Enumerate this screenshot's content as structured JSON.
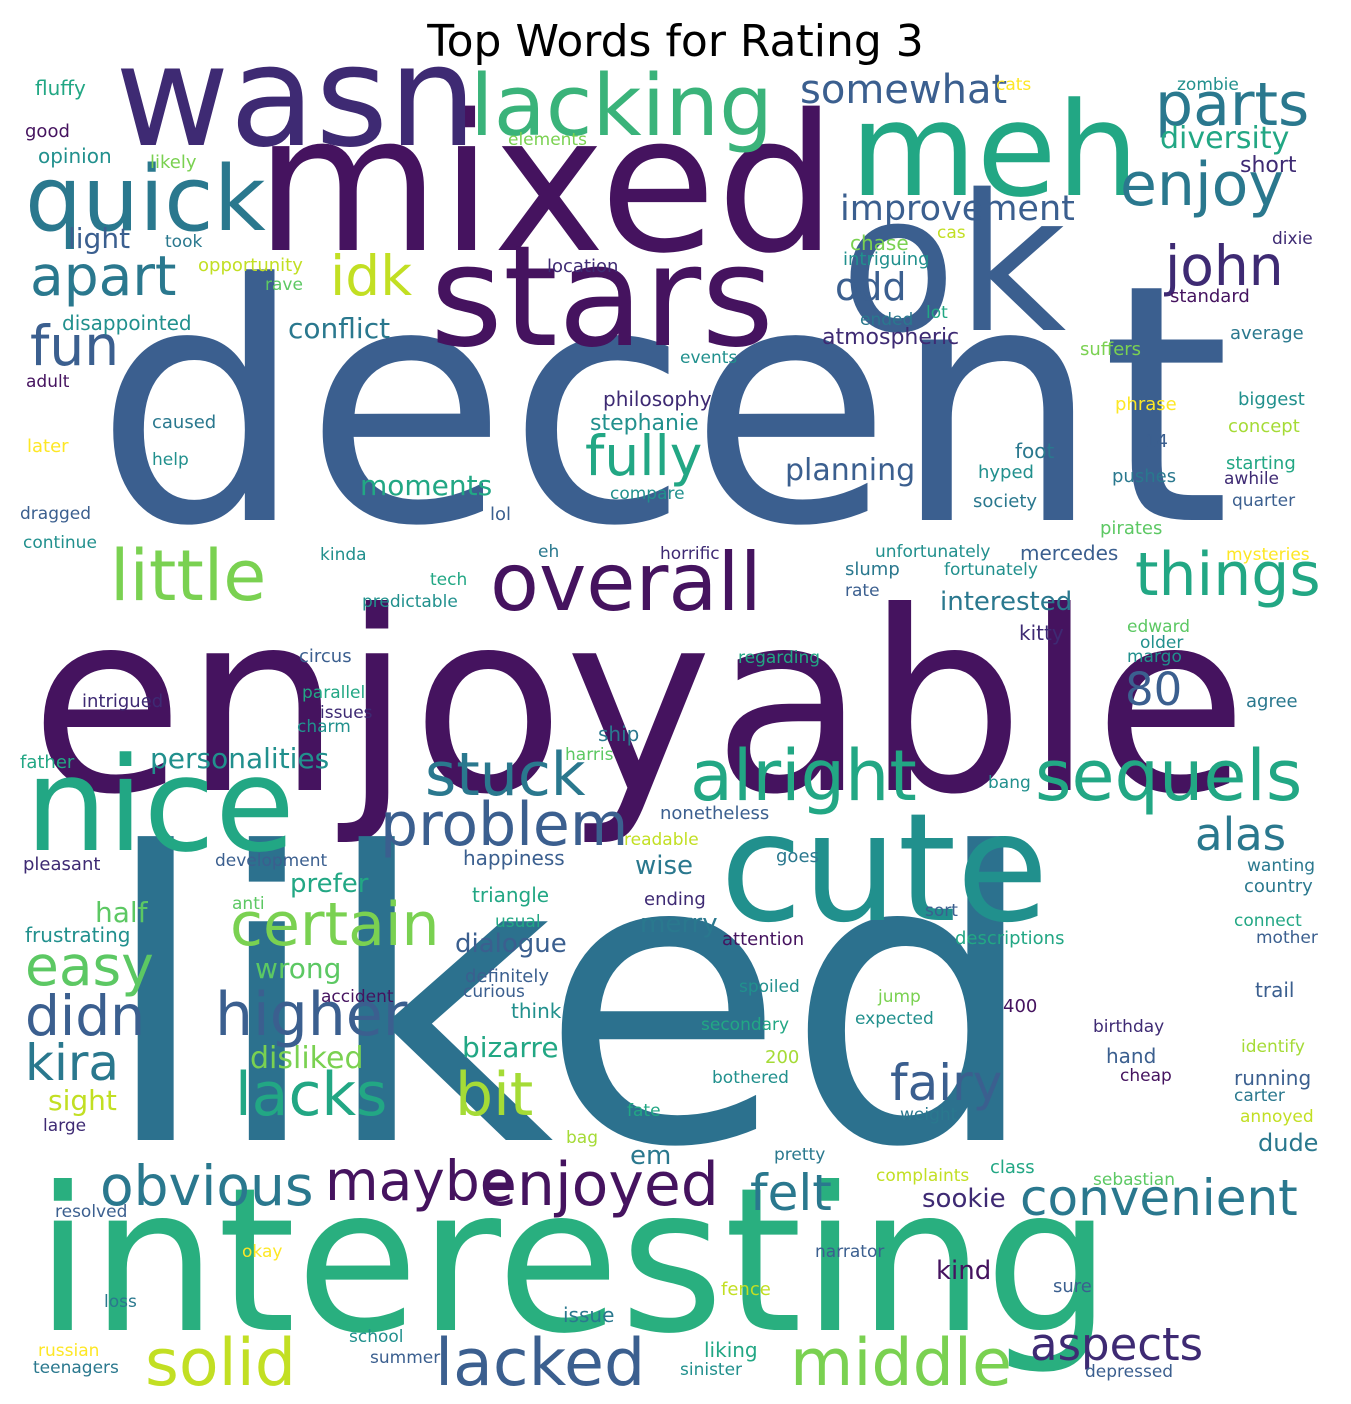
{
  "title": "Top Words for Rating 3",
  "palette": {
    "dark_purple": "#440154",
    "purple": "#472c7a",
    "indigo": "#3b518b",
    "blue": "#2c718e",
    "teal": "#21908d",
    "green_teal": "#27ad81",
    "green": "#5cc863",
    "lime": "#aadc32",
    "yellow": "#fde725"
  },
  "words": [
    {
      "text": "decent",
      "color": "#3b5f8f"
    },
    {
      "text": "enjoyable",
      "color": "#45135f"
    },
    {
      "text": "liked",
      "color": "#2c718e"
    },
    {
      "text": "interesting",
      "color": "#29af7f"
    },
    {
      "text": "mixed",
      "color": "#45135f"
    },
    {
      "text": "wasn",
      "color": "#3e2a73"
    },
    {
      "text": "meh",
      "color": "#22a784"
    },
    {
      "text": "ok",
      "color": "#3b5f8f"
    },
    {
      "text": "stars",
      "color": "#45135f"
    },
    {
      "text": "nice",
      "color": "#22a784"
    },
    {
      "text": "cute",
      "color": "#21908d"
    },
    {
      "text": "quick",
      "color": "#2a788e"
    },
    {
      "text": "lacking",
      "color": "#3ab37a"
    },
    {
      "text": "parts",
      "color": "#2a788e"
    },
    {
      "text": "enjoy",
      "color": "#2a788e"
    },
    {
      "text": "apart",
      "color": "#2a788e"
    },
    {
      "text": "idk",
      "color": "#c2df23"
    },
    {
      "text": "john",
      "color": "#3e2a73"
    },
    {
      "text": "fun",
      "color": "#3b5f8f"
    },
    {
      "text": "little",
      "color": "#7ad151"
    },
    {
      "text": "overall",
      "color": "#45135f"
    },
    {
      "text": "things",
      "color": "#22a784"
    },
    {
      "text": "fully",
      "color": "#22a784"
    },
    {
      "text": "alright",
      "color": "#22a784"
    },
    {
      "text": "sequels",
      "color": "#22a784"
    },
    {
      "text": "stuck",
      "color": "#2a788e"
    },
    {
      "text": "problem",
      "color": "#3b5f8f"
    },
    {
      "text": "80",
      "color": "#3b5f8f"
    },
    {
      "text": "alas",
      "color": "#2a788e"
    },
    {
      "text": "certain",
      "color": "#7ad151"
    },
    {
      "text": "easy",
      "color": "#5cc863"
    },
    {
      "text": "higher",
      "color": "#3b5f8f"
    },
    {
      "text": "didn",
      "color": "#3b5f8f"
    },
    {
      "text": "kira",
      "color": "#2a788e"
    },
    {
      "text": "lacks",
      "color": "#22a784"
    },
    {
      "text": "bit",
      "color": "#a5db36"
    },
    {
      "text": "fairy",
      "color": "#3b5f8f"
    },
    {
      "text": "obvious",
      "color": "#2a788e"
    },
    {
      "text": "maybe",
      "color": "#45135f"
    },
    {
      "text": "enjoyed",
      "color": "#45135f"
    },
    {
      "text": "felt",
      "color": "#2a788e"
    },
    {
      "text": "convenient",
      "color": "#2a788e"
    },
    {
      "text": "solid",
      "color": "#c2df23"
    },
    {
      "text": "lacked",
      "color": "#3b5f8f"
    },
    {
      "text": "middle",
      "color": "#7ad151"
    },
    {
      "text": "aspects",
      "color": "#3e2a73"
    },
    {
      "text": "somewhat",
      "color": "#3b5f8f"
    },
    {
      "text": "improvement",
      "color": "#3b5f8f"
    },
    {
      "text": "odd",
      "color": "#3b5f8f"
    },
    {
      "text": "diversity",
      "color": "#22a784"
    },
    {
      "text": "short",
      "color": "#3e2a73"
    },
    {
      "text": "light",
      "color": "#3b5f8f"
    },
    {
      "text": "conflict",
      "color": "#2a788e"
    },
    {
      "text": "stephanie",
      "color": "#21908d"
    },
    {
      "text": "planning",
      "color": "#3b5f8f"
    },
    {
      "text": "moments",
      "color": "#22a784"
    },
    {
      "text": "personalities",
      "color": "#21908d"
    },
    {
      "text": "interested",
      "color": "#2a788e"
    },
    {
      "text": "prefer",
      "color": "#22a784"
    },
    {
      "text": "half",
      "color": "#5cc863"
    },
    {
      "text": "wrong",
      "color": "#5cc863"
    },
    {
      "text": "dialogue",
      "color": "#3b5f8f"
    },
    {
      "text": "merry",
      "color": "#2a788e"
    },
    {
      "text": "wise",
      "color": "#2a788e"
    },
    {
      "text": "bizarre",
      "color": "#22a784"
    },
    {
      "text": "disliked",
      "color": "#7ad151"
    },
    {
      "text": "sight",
      "color": "#c2df23"
    },
    {
      "text": "em",
      "color": "#2a788e"
    },
    {
      "text": "dude",
      "color": "#2a788e"
    },
    {
      "text": "sookie",
      "color": "#3e2a73"
    },
    {
      "text": "kind",
      "color": "#45135f"
    },
    {
      "text": "fluffy",
      "color": "#22a784"
    },
    {
      "text": "good",
      "color": "#45135f"
    },
    {
      "text": "opinion",
      "color": "#21908d"
    },
    {
      "text": "likely",
      "color": "#7ad151"
    },
    {
      "text": "took",
      "color": "#2a788e"
    },
    {
      "text": "opportunity",
      "color": "#c2df23"
    },
    {
      "text": "rave",
      "color": "#5cc863"
    },
    {
      "text": "location",
      "color": "#3e2a73"
    },
    {
      "text": "elements",
      "color": "#7ad151"
    },
    {
      "text": "cats",
      "color": "#fde725"
    },
    {
      "text": "zombie",
      "color": "#21908d"
    },
    {
      "text": "chase",
      "color": "#7ad151"
    },
    {
      "text": "cas",
      "color": "#c2df23"
    },
    {
      "text": "intriguing",
      "color": "#21908d"
    },
    {
      "text": "dixie",
      "color": "#3e2a73"
    },
    {
      "text": "standard",
      "color": "#45135f"
    },
    {
      "text": "lot",
      "color": "#22a784"
    },
    {
      "text": "ended",
      "color": "#2a788e"
    },
    {
      "text": "atmospheric",
      "color": "#3e2a73"
    },
    {
      "text": "average",
      "color": "#2a788e"
    },
    {
      "text": "suffers",
      "color": "#7ad151"
    },
    {
      "text": "events",
      "color": "#21908d"
    },
    {
      "text": "disappointed",
      "color": "#21908d"
    },
    {
      "text": "adult",
      "color": "#45135f"
    },
    {
      "text": "philosophy",
      "color": "#3e2a73"
    },
    {
      "text": "phrase",
      "color": "#fde725"
    },
    {
      "text": "biggest",
      "color": "#21908d"
    },
    {
      "text": "caused",
      "color": "#2a788e"
    },
    {
      "text": "later",
      "color": "#fde725"
    },
    {
      "text": "help",
      "color": "#21908d"
    },
    {
      "text": "foot",
      "color": "#2a788e"
    },
    {
      "text": "14",
      "color": "#3b5f8f"
    },
    {
      "text": "concept",
      "color": "#a5db36"
    },
    {
      "text": "hyped",
      "color": "#21908d"
    },
    {
      "text": "pushes",
      "color": "#2a788e"
    },
    {
      "text": "starting",
      "color": "#22a784"
    },
    {
      "text": "awhile",
      "color": "#3e2a73"
    },
    {
      "text": "compare",
      "color": "#21908d"
    },
    {
      "text": "society",
      "color": "#2a788e"
    },
    {
      "text": "quarter",
      "color": "#3b5f8f"
    },
    {
      "text": "dragged",
      "color": "#3b5f8f"
    },
    {
      "text": "lol",
      "color": "#3b5f8f"
    },
    {
      "text": "pirates",
      "color": "#5cc863"
    },
    {
      "text": "continue",
      "color": "#21908d"
    },
    {
      "text": "kinda",
      "color": "#21908d"
    },
    {
      "text": "eh",
      "color": "#2a788e"
    },
    {
      "text": "horrific",
      "color": "#3e2a73"
    },
    {
      "text": "unfortunately",
      "color": "#21908d"
    },
    {
      "text": "mercedes",
      "color": "#3b5f8f"
    },
    {
      "text": "mysteries",
      "color": "#fde725"
    },
    {
      "text": "tech",
      "color": "#22a784"
    },
    {
      "text": "slump",
      "color": "#2a788e"
    },
    {
      "text": "fortunately",
      "color": "#21908d"
    },
    {
      "text": "predictable",
      "color": "#21908d"
    },
    {
      "text": "rate",
      "color": "#3b5f8f"
    },
    {
      "text": "edward",
      "color": "#5cc863"
    },
    {
      "text": "kitty",
      "color": "#3e2a73"
    },
    {
      "text": "older",
      "color": "#21908d"
    },
    {
      "text": "circus",
      "color": "#3b5f8f"
    },
    {
      "text": "regarding",
      "color": "#22a784"
    },
    {
      "text": "margo",
      "color": "#21908d"
    },
    {
      "text": "intrigued",
      "color": "#3e2a73"
    },
    {
      "text": "parallel",
      "color": "#22a784"
    },
    {
      "text": "issues",
      "color": "#3e2a73"
    },
    {
      "text": "charm",
      "color": "#21908d"
    },
    {
      "text": "agree",
      "color": "#2a788e"
    },
    {
      "text": "ship",
      "color": "#2a788e"
    },
    {
      "text": "harris",
      "color": "#5cc863"
    },
    {
      "text": "father",
      "color": "#22a784"
    },
    {
      "text": "bang",
      "color": "#21908d"
    },
    {
      "text": "nonetheless",
      "color": "#3b5f8f"
    },
    {
      "text": "readable",
      "color": "#c2df23"
    },
    {
      "text": "pleasant",
      "color": "#3e2a73"
    },
    {
      "text": "development",
      "color": "#3b5f8f"
    },
    {
      "text": "happiness",
      "color": "#3b5f8f"
    },
    {
      "text": "goes",
      "color": "#2a788e"
    },
    {
      "text": "wanting",
      "color": "#2a788e"
    },
    {
      "text": "country",
      "color": "#2a788e"
    },
    {
      "text": "triangle",
      "color": "#22a784"
    },
    {
      "text": "ending",
      "color": "#3e2a73"
    },
    {
      "text": "anti",
      "color": "#5cc863"
    },
    {
      "text": "usual",
      "color": "#22a784"
    },
    {
      "text": "sort",
      "color": "#3b5f8f"
    },
    {
      "text": "connect",
      "color": "#22a784"
    },
    {
      "text": "mother",
      "color": "#3b5f8f"
    },
    {
      "text": "frustrating",
      "color": "#21908d"
    },
    {
      "text": "attention",
      "color": "#45135f"
    },
    {
      "text": "descriptions",
      "color": "#22a784"
    },
    {
      "text": "definitely",
      "color": "#3b5f8f"
    },
    {
      "text": "curious",
      "color": "#3b5f8f"
    },
    {
      "text": "accident",
      "color": "#45135f"
    },
    {
      "text": "spoiled",
      "color": "#21908d"
    },
    {
      "text": "trail",
      "color": "#3b5f8f"
    },
    {
      "text": "jump",
      "color": "#7ad151"
    },
    {
      "text": "think",
      "color": "#21908d"
    },
    {
      "text": "400",
      "color": "#45135f"
    },
    {
      "text": "secondary",
      "color": "#22a784"
    },
    {
      "text": "expected",
      "color": "#21908d"
    },
    {
      "text": "birthday",
      "color": "#3e2a73"
    },
    {
      "text": "identify",
      "color": "#a5db36"
    },
    {
      "text": "200",
      "color": "#a5db36"
    },
    {
      "text": "hand",
      "color": "#3b5f8f"
    },
    {
      "text": "cheap",
      "color": "#45135f"
    },
    {
      "text": "running",
      "color": "#3b5f8f"
    },
    {
      "text": "bothered",
      "color": "#21908d"
    },
    {
      "text": "carter",
      "color": "#2a788e"
    },
    {
      "text": "weight",
      "color": "#2a788e"
    },
    {
      "text": "annoyed",
      "color": "#c2df23"
    },
    {
      "text": "large",
      "color": "#3e2a73"
    },
    {
      "text": "fate",
      "color": "#22a784"
    },
    {
      "text": "bag",
      "color": "#a5db36"
    },
    {
      "text": "pretty",
      "color": "#2a788e"
    },
    {
      "text": "complaints",
      "color": "#c2df23"
    },
    {
      "text": "class",
      "color": "#22a784"
    },
    {
      "text": "sebastian",
      "color": "#5cc863"
    },
    {
      "text": "resolved",
      "color": "#3b5f8f"
    },
    {
      "text": "okay",
      "color": "#fde725"
    },
    {
      "text": "narrator",
      "color": "#3b5f8f"
    },
    {
      "text": "fence",
      "color": "#c2df23"
    },
    {
      "text": "sure",
      "color": "#3b5f8f"
    },
    {
      "text": "loss",
      "color": "#2a788e"
    },
    {
      "text": "issue",
      "color": "#2a788e"
    },
    {
      "text": "liking",
      "color": "#22a784"
    },
    {
      "text": "russian",
      "color": "#fde725"
    },
    {
      "text": "school",
      "color": "#21908d"
    },
    {
      "text": "summer",
      "color": "#3b5f8f"
    },
    {
      "text": "sinister",
      "color": "#21908d"
    },
    {
      "text": "teenagers",
      "color": "#2a788e"
    },
    {
      "text": "depressed",
      "color": "#3b5f8f"
    }
  ]
}
